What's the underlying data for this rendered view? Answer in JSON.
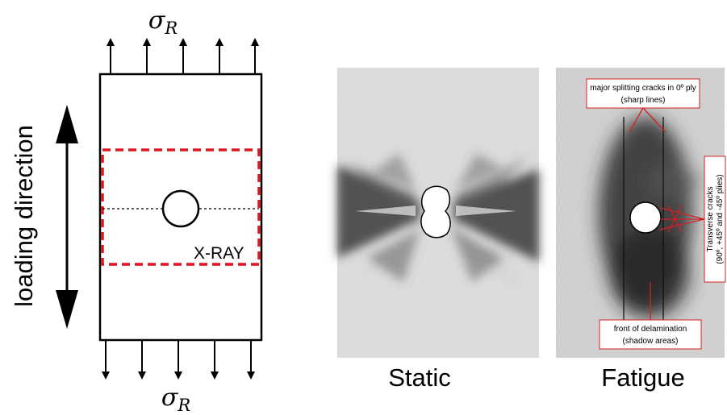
{
  "specimen": {
    "sigma_symbol": "σ",
    "sigma_subscript": "R",
    "loading_label": "loading direction",
    "xray_label": "X-RAY"
  },
  "panels": {
    "static_label": "Static",
    "fatigue_label": "Fatigue"
  },
  "annotations": {
    "splitting_line1": "major splitting cracks in 0º ply",
    "splitting_line2": "(sharp lines)",
    "transverse_line1": "Transverse cracks",
    "transverse_line2": "(90º, +45º and -45º plies)",
    "delam_line1": "front of delamination",
    "delam_line2": "(shadow areas)"
  },
  "colors": {
    "xray_box": "#e0141b",
    "annotation": "#d42020"
  }
}
